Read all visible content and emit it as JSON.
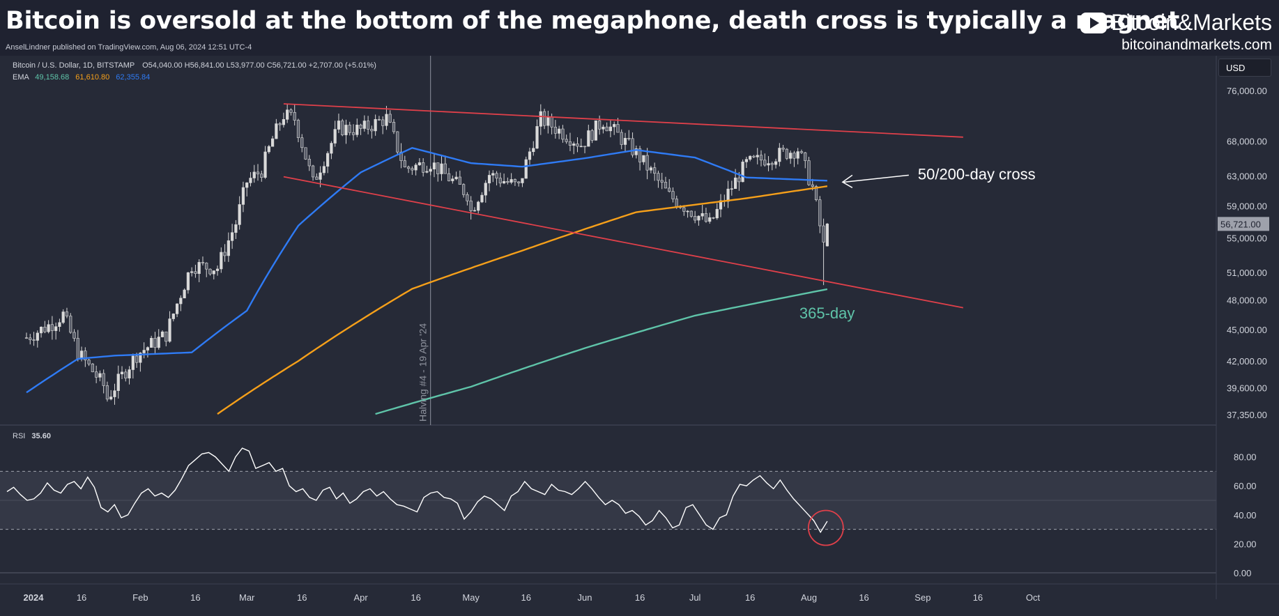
{
  "header": {
    "headline": "Bitcoin is oversold at the bottom of the megaphone, death cross is typically a magnet",
    "brand_text": "Bitcoin&Markets",
    "brand_url": "bitcoinandmarkets.com",
    "publisher": "AnselLindner published on TradingView.com, Aug 06, 2024 12:51 UTC-4"
  },
  "legend": {
    "symbol": "Bitcoin / U.S. Dollar, 1D, BITSTAMP",
    "ohlc": "O54,040.00  H56,841.00  L53,977.00  C56,721.00  +2,707.00 (+5.01%)",
    "ema_label": "EMA",
    "ema_values": [
      "49,158.68",
      "61,610.80",
      "62,355.84"
    ],
    "rsi_label": "RSI",
    "rsi_value": "35.60"
  },
  "currency": "USD",
  "colors": {
    "background": "#262a37",
    "candle": "#d9d9d9",
    "ema_short": "#2f7bf5",
    "ema_mid": "#f6a01a",
    "ema_long": "#5fc4a9",
    "trendline": "#e0404a",
    "rsi": "#ffffff"
  },
  "annotations": {
    "cross_label": "50/200-day cross",
    "ema365_label": "365-day",
    "halving_label": "Halving #4 - 19 Apr '24"
  },
  "chart_data": [
    {
      "type": "candlestick",
      "title": "Bitcoin / U.S. Dollar, 1D, BITSTAMP",
      "x_labels": [
        "2024",
        "16",
        "Feb",
        "16",
        "Mar",
        "16",
        "Apr",
        "16",
        "May",
        "16",
        "Jun",
        "16",
        "Jul",
        "16",
        "Aug",
        "16",
        "Sep",
        "16",
        "Oct"
      ],
      "y_ticks": [
        76000,
        68000,
        63000,
        59000,
        55000,
        51000,
        48000,
        45000,
        42000,
        39600,
        37350
      ],
      "y_tick_labels": [
        "76,000.00",
        "68,000.00",
        "63,000.00",
        "59,000.00",
        "55,000.00",
        "51,000.00",
        "48,000.00",
        "45,000.00",
        "42,000.00",
        "39,600.00",
        "37,350.00"
      ],
      "y_scale": "log",
      "ylim": [
        36500,
        82000
      ],
      "last_price_label": "56,721.00",
      "series": [
        {
          "name": "Close",
          "points": [
            [
              "2024-01-01",
              44200
            ],
            [
              "2024-01-08",
              45600
            ],
            [
              "2024-01-11",
              46500
            ],
            [
              "2024-01-15",
              42800
            ],
            [
              "2024-01-22",
              39800
            ],
            [
              "2024-01-23",
              38700
            ],
            [
              "2024-01-31",
              42600
            ],
            [
              "2024-02-08",
              44500
            ],
            [
              "2024-02-15",
              51800
            ],
            [
              "2024-02-22",
              51500
            ],
            [
              "2024-02-27",
              56800
            ],
            [
              "2024-03-01",
              62200
            ],
            [
              "2024-03-05",
              63800
            ],
            [
              "2024-03-08",
              68300
            ],
            [
              "2024-03-11",
              72000
            ],
            [
              "2024-03-14",
              71400
            ],
            [
              "2024-03-19",
              62000
            ],
            [
              "2024-03-26",
              70000
            ],
            [
              "2024-04-01",
              69700
            ],
            [
              "2024-04-08",
              71500
            ],
            [
              "2024-04-13",
              64000
            ],
            [
              "2024-04-20",
              64900
            ],
            [
              "2024-04-30",
              60600
            ],
            [
              "2024-05-01",
              58300
            ],
            [
              "2024-05-06",
              63200
            ],
            [
              "2024-05-14",
              61500
            ],
            [
              "2024-05-20",
              71400
            ],
            [
              "2024-05-31",
              67500
            ],
            [
              "2024-06-06",
              71100
            ],
            [
              "2024-06-15",
              66200
            ],
            [
              "2024-06-24",
              60300
            ],
            [
              "2024-07-05",
              56700
            ],
            [
              "2024-07-15",
              64700
            ],
            [
              "2024-07-29",
              66800
            ],
            [
              "2024-08-02",
              61400
            ],
            [
              "2024-08-05",
              54000
            ],
            [
              "2024-08-06",
              56721
            ]
          ]
        },
        {
          "name": "EMA 50",
          "points": [
            [
              "2024-01-01",
              39200
            ],
            [
              "2024-01-15",
              42200
            ],
            [
              "2024-01-25",
              42500
            ],
            [
              "2024-02-15",
              42800
            ],
            [
              "2024-03-01",
              46900
            ],
            [
              "2024-03-15",
              56500
            ],
            [
              "2024-04-01",
              63500
            ],
            [
              "2024-04-15",
              67000
            ],
            [
              "2024-05-01",
              64800
            ],
            [
              "2024-05-15",
              64300
            ],
            [
              "2024-06-01",
              65500
            ],
            [
              "2024-06-15",
              66700
            ],
            [
              "2024-07-01",
              65600
            ],
            [
              "2024-07-15",
              62800
            ],
            [
              "2024-08-06",
              62355.84
            ]
          ]
        },
        {
          "name": "EMA 200",
          "points": [
            [
              "2024-02-22",
              37400
            ],
            [
              "2024-03-15",
              42000
            ],
            [
              "2024-04-15",
              49200
            ],
            [
              "2024-05-15",
              53500
            ],
            [
              "2024-06-15",
              58200
            ],
            [
              "2024-07-15",
              60000
            ],
            [
              "2024-08-06",
              61610.8
            ]
          ]
        },
        {
          "name": "EMA 365",
          "points": [
            [
              "2024-04-05",
              37400
            ],
            [
              "2024-05-01",
              39700
            ],
            [
              "2024-06-01",
              43200
            ],
            [
              "2024-07-01",
              46400
            ],
            [
              "2024-08-06",
              49158.68
            ]
          ]
        }
      ],
      "trendlines": [
        {
          "name": "upper",
          "from": [
            "2024-03-11",
            73800
          ],
          "to": [
            "2024-09-12",
            68600
          ]
        },
        {
          "name": "lower",
          "from": [
            "2024-03-11",
            62900
          ],
          "to": [
            "2024-09-12",
            47200
          ]
        }
      ]
    },
    {
      "type": "line",
      "title": "RSI",
      "y_ticks": [
        80,
        60,
        40,
        20,
        0
      ],
      "y_tick_labels": [
        "80.00",
        "60.00",
        "40.00",
        "20.00",
        "0.00"
      ],
      "ylim": [
        0,
        100
      ],
      "bands": [
        30,
        50,
        70
      ],
      "series": [
        {
          "name": "RSI",
          "values": [
            56,
            59,
            54,
            50,
            51,
            55,
            62,
            57,
            55,
            61,
            63,
            58,
            66,
            59,
            45,
            42,
            47,
            38,
            40,
            48,
            55,
            58,
            53,
            55,
            52,
            57,
            65,
            74,
            78,
            82,
            83,
            80,
            75,
            70,
            80,
            86,
            84,
            72,
            74,
            76,
            70,
            72,
            60,
            56,
            58,
            52,
            50,
            57,
            59,
            51,
            55,
            48,
            51,
            56,
            58,
            53,
            56,
            51,
            47,
            46,
            44,
            42,
            52,
            55,
            56,
            52,
            51,
            48,
            37,
            42,
            49,
            53,
            51,
            47,
            43,
            53,
            56,
            63,
            58,
            56,
            54,
            61,
            57,
            56,
            54,
            58,
            63,
            58,
            52,
            47,
            50,
            47,
            41,
            43,
            39,
            33,
            36,
            43,
            38,
            31,
            33,
            45,
            47,
            40,
            33,
            30,
            38,
            40,
            53,
            61,
            60,
            64,
            67,
            62,
            58,
            64,
            57,
            51,
            46,
            41,
            36,
            28,
            35.6
          ]
        }
      ]
    }
  ]
}
